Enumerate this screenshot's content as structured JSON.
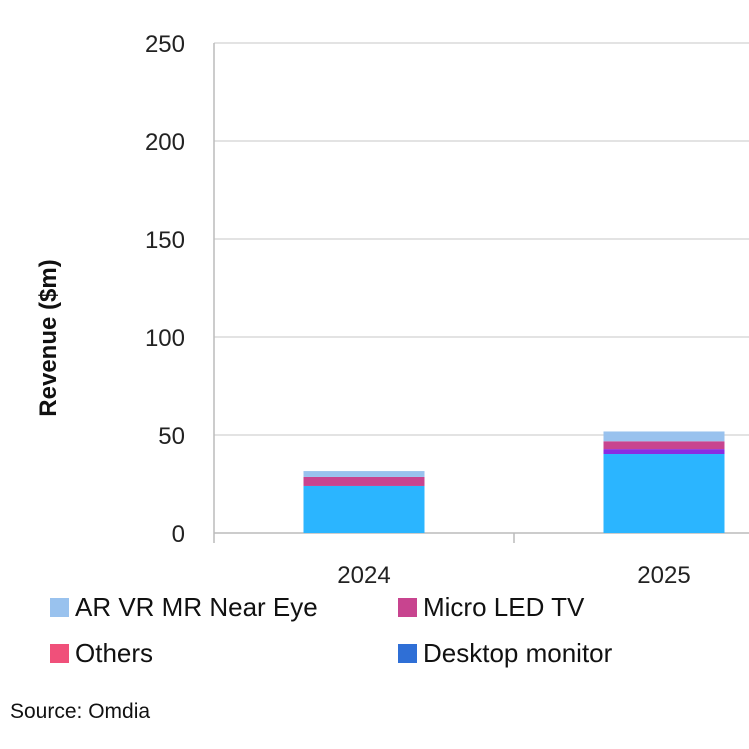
{
  "chart_data": {
    "type": "bar",
    "stacked": true,
    "ylabel": "Revenue ($m)",
    "ylim": [
      0,
      250
    ],
    "yticks": [
      "0",
      "50",
      "100",
      "150",
      "200",
      "250"
    ],
    "grid": true,
    "categories": [
      "2024",
      "2025"
    ],
    "series": [
      {
        "values": [
          24,
          40.3
        ],
        "color": "#2bb5ff"
      },
      {
        "values": [
          0,
          2.5
        ],
        "color": "#8a2be2"
      },
      {
        "name": "Micro LED TV",
        "values": [
          4.6,
          4
        ],
        "color": "#c8448f"
      },
      {
        "name": "AR VR MR Near Eye",
        "values": [
          3,
          5
        ],
        "color": "#99c2ee"
      }
    ],
    "legend": [
      {
        "name": "AR VR MR Near Eye",
        "color": "#99c2ee"
      },
      {
        "name": "Micro LED TV",
        "color": "#c8448f"
      },
      {
        "name": "Others",
        "color": "#f0507a"
      },
      {
        "name": "Desktop monitor",
        "color": "#2f6fd6"
      }
    ],
    "legend_position": "bottom"
  },
  "source": "Source: Omdia"
}
